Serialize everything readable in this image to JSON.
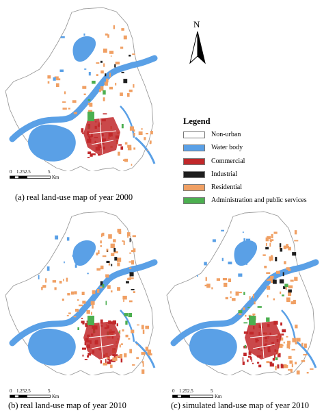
{
  "colors": {
    "non_urban": "#ffffff",
    "water": "#5aa0e6",
    "commercial": "#c1282a",
    "industrial": "#1e1e1e",
    "residential": "#f0a064",
    "admin": "#4caf50",
    "boundary": "#9a9a9a"
  },
  "legend": {
    "title": "Legend",
    "items": [
      {
        "key": "non_urban",
        "label": "Non-urban"
      },
      {
        "key": "water",
        "label": "Water body"
      },
      {
        "key": "commercial",
        "label": "Commercial"
      },
      {
        "key": "industrial",
        "label": "Industrial"
      },
      {
        "key": "residential",
        "label": "Residential"
      },
      {
        "key": "admin",
        "label": "Administration and public services"
      }
    ]
  },
  "north_arrow": {
    "label": "N"
  },
  "scale": {
    "ticks": [
      "0",
      "1.25",
      "2.5",
      "5"
    ],
    "unit": "Km"
  },
  "maps": [
    {
      "id": "a",
      "caption": "(a)  real land-use map of year 2000"
    },
    {
      "id": "b",
      "caption": "(b)  real land-use map of year 2010"
    },
    {
      "id": "c",
      "caption": "(c)  simulated land-use map of year 2010"
    }
  ]
}
